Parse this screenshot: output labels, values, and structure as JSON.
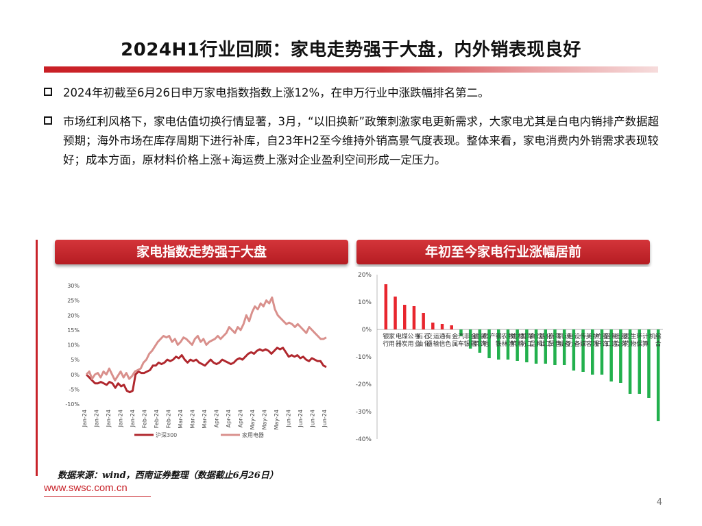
{
  "page": {
    "title": "2024H1行业回顾：家电走势强于大盘，内外销表现良好",
    "page_number": "4",
    "source": "数据来源：wind，西南证券整理（数据截止6月26日）",
    "website": "www.swsc.com.cn"
  },
  "bullets": [
    {
      "text": "2024年初截至6月26日申万家电指数指数上涨12%，在申万行业中涨跌幅排名第二。"
    },
    {
      "text": "市场红利风格下，家电估值切换行情显著，3月，“以旧换新”政策刺激家电更新需求，大家电尤其是白电内销排产数据超预期；海外市场在库存周期下进行补库，自23年H2至今维持外销高景气度表现。整体来看，家电消费内外销需求表现较好；成本方面，原材料价格上涨+海运费上涨对企业盈利空间形成一定压力。"
    }
  ],
  "panels": {
    "left_title": "家电指数走势强于大盘",
    "right_title": "年初至今家电行业涨幅居前"
  },
  "chart_data": [
    {
      "type": "line",
      "yticks": [
        "30%",
        "25%",
        "20%",
        "15%",
        "10%",
        "5%",
        "0%",
        "-5%",
        "-10%"
      ],
      "ylim": [
        -10,
        30
      ],
      "xticks": [
        "Jan-24",
        "Jan-24",
        "Jan-24",
        "Jan-24",
        "Jan-24",
        "Feb-24",
        "Feb-24",
        "Feb-24",
        "Mar-24",
        "Mar-24",
        "Mar-24",
        "Apr-24",
        "Apr-24",
        "Apr-24",
        "May-24",
        "May-24",
        "May-24",
        "Jun-24",
        "Jun-24",
        "Jun-24",
        "Jun-24"
      ],
      "colors": {
        "hs300": "#b0282e",
        "appliance": "#d9908c"
      },
      "series": [
        {
          "name": "沪深300",
          "values": [
            0,
            -1,
            -2,
            -3,
            -3,
            -2.5,
            -3,
            -3.5,
            -2.5,
            -3,
            -4.5,
            -3,
            -4,
            -3.5,
            -5.5,
            -6,
            -5.5,
            0,
            1,
            0.5,
            0.5,
            1,
            1.5,
            3,
            3,
            4,
            3.5,
            4,
            5,
            4.5,
            5,
            6,
            5.5,
            6.5,
            5,
            4,
            5,
            4.5,
            5,
            4,
            3.5,
            3,
            4,
            5,
            4,
            3.5,
            4,
            5,
            4.5,
            4,
            3.5,
            4,
            5,
            5.5,
            5,
            6,
            7,
            7.5,
            7,
            8,
            8.5,
            8,
            8.5,
            8,
            7,
            8,
            9,
            8.5,
            9,
            7.5,
            6,
            6.5,
            6,
            6.5,
            5.5,
            6,
            5,
            4.5,
            5.5,
            5,
            4.5,
            4.5,
            3,
            2.5
          ]
        },
        {
          "name": "家用电器",
          "values": [
            0,
            1,
            -1.5,
            0,
            0.5,
            -1,
            1,
            0,
            2,
            0,
            -2,
            -0.5,
            1,
            -1,
            0.5,
            -1.5,
            -0.5,
            1,
            1.5,
            2,
            4,
            5,
            7,
            8,
            9.5,
            11,
            12,
            13,
            12.5,
            13,
            11,
            12,
            10,
            11,
            12.5,
            12,
            11,
            10,
            12,
            13,
            11,
            12,
            10,
            11,
            11.5,
            12,
            13,
            12,
            13,
            14,
            16,
            15,
            14,
            16,
            15,
            17,
            20,
            18,
            21,
            23,
            22,
            24,
            23,
            25,
            24,
            26,
            22,
            20,
            19,
            18,
            17,
            17.5,
            17,
            16,
            17,
            16,
            15,
            14,
            16,
            15,
            14,
            13,
            12,
            12,
            12.5
          ]
        }
      ]
    },
    {
      "type": "bar",
      "yticks": [
        "20%",
        "10%",
        "0%",
        "-10%",
        "-20%",
        "-30%",
        "-40%"
      ],
      "ylim": [
        -40,
        20
      ],
      "colors": {
        "positive": "#e8262e",
        "negative": "#22b04d"
      },
      "categories": [
        "银行",
        "家用电器",
        "煤炭",
        "公用事业",
        "石油石化",
        "交通运输",
        "通信",
        "有色金属",
        "汽车",
        "非银金融",
        "",
        "",
        "",
        "",
        "",
        "",
        "",
        "",
        "",
        "",
        "",
        "",
        "",
        "",
        "",
        "",
        "",
        "",
        "",
        ""
      ],
      "category_labels": [
        [
          "银",
          "行"
        ],
        [
          "家",
          "用",
          "电",
          "器"
        ],
        [
          "煤",
          "炭"
        ],
        [
          "公",
          "用",
          "事",
          "业"
        ],
        [
          "石",
          "油",
          "石",
          "化"
        ],
        [
          "交",
          "通",
          "运",
          "输"
        ],
        [
          "通",
          "信"
        ],
        [
          "有",
          "色",
          "金",
          "属"
        ],
        [
          "汽",
          "车"
        ],
        [
          "非",
          "银",
          "金",
          "融"
        ],
        [
          "建",
          "筑",
          "装",
          "饰"
        ],
        [
          "房",
          "地",
          "产"
        ],
        [
          "钢",
          "铁"
        ],
        [
          "农",
          "林",
          "牧",
          "渔"
        ],
        [
          "建",
          "筑",
          "材",
          "料"
        ],
        [
          "国",
          "防",
          "军",
          "工"
        ],
        [
          "食",
          "品",
          "饮",
          "料"
        ],
        [
          "基",
          "础",
          "化",
          "工"
        ],
        [
          "商",
          "贸",
          "零",
          "售"
        ],
        [
          "机",
          "械",
          "设",
          "备"
        ],
        [
          "电",
          "力",
          "设",
          "备"
        ],
        [
          "传",
          "媒"
        ],
        [
          "美",
          "容",
          "护",
          "理"
        ],
        [
          "纺",
          "织",
          "服",
          "饰"
        ],
        [
          "轻",
          "工",
          "制",
          "造"
        ],
        [
          "社",
          "会",
          "服",
          "务"
        ],
        [
          "医",
          "药",
          "生",
          "物"
        ],
        [
          "环",
          "保"
        ],
        [
          "计",
          "算",
          "机"
        ],
        [
          "综",
          "合"
        ]
      ],
      "values": [
        16.5,
        12,
        9,
        8.5,
        6,
        2.5,
        2,
        1.5,
        -2.5,
        -7,
        -8.5,
        -10.5,
        -11,
        -11,
        -11.5,
        -12,
        -12.5,
        -12.5,
        -13,
        -13,
        -15,
        -15.5,
        -16.5,
        -16.5,
        -19,
        -19.5,
        -23.5,
        -23.5,
        -25,
        -33.5
      ]
    }
  ],
  "legend": {
    "hs300": "沪深300",
    "appliance": "家用电器"
  }
}
